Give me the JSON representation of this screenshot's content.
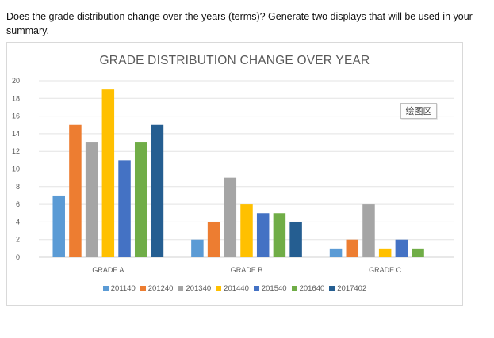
{
  "question": "Does the grade distribution change over the years (terms)? Generate two displays that will be used in your summary.",
  "overlay_button_label": "绘图区",
  "chart_data": {
    "type": "bar",
    "title": "GRADE DISTRIBUTION CHANGE OVER YEAR",
    "xlabel": "",
    "ylabel": "",
    "ylim": [
      0,
      20
    ],
    "yticks": [
      "0",
      "2",
      "4",
      "6",
      "8",
      "10",
      "12",
      "14",
      "16",
      "18",
      "20"
    ],
    "grid": true,
    "legend_position": "bottom",
    "categories": [
      "GRADE A",
      "GRADE B",
      "GRADE C"
    ],
    "series": [
      {
        "name": "201140",
        "color": "#5b9bd5",
        "values": [
          7,
          2,
          1
        ]
      },
      {
        "name": "201240",
        "color": "#ed7d31",
        "values": [
          15,
          4,
          2
        ]
      },
      {
        "name": "201340",
        "color": "#a5a5a5",
        "values": [
          13,
          9,
          6
        ]
      },
      {
        "name": "201440",
        "color": "#ffc000",
        "values": [
          19,
          6,
          1
        ]
      },
      {
        "name": "201540",
        "color": "#4472c4",
        "values": [
          11,
          5,
          2
        ]
      },
      {
        "name": "201640",
        "color": "#70ad47",
        "values": [
          13,
          5,
          1
        ]
      },
      {
        "name": "2017402",
        "color": "#255e91",
        "values": [
          15,
          4,
          0
        ]
      }
    ]
  }
}
